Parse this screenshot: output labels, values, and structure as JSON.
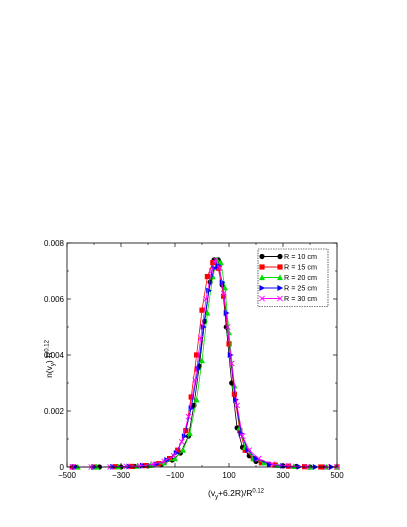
{
  "chart_data": {
    "type": "line",
    "xlabel": "(v_y+6.2R)/R^0.12",
    "ylabel": "n(v_y) R^0.12",
    "xlim": [
      -500,
      500
    ],
    "ylim": [
      0,
      0.008
    ],
    "xticks": [
      -500,
      -300,
      -100,
      100,
      300,
      500
    ],
    "yticks": [
      0,
      0.002,
      0.004,
      0.006,
      0.008
    ],
    "xtick_labels": [
      "−500",
      "−300",
      "−100",
      "100",
      "300",
      "500"
    ],
    "ytick_labels": [
      "0",
      "0.002",
      "0.004",
      "0.006",
      "0.008"
    ],
    "grid": false,
    "legend_position": "top-right",
    "series": [
      {
        "name": "R = 10 cm",
        "color": "#000000",
        "marker": "circle",
        "x": [
          -470,
          -380,
          -300,
          -250,
          -200,
          -150,
          -110,
          -80,
          -50,
          -30,
          -10,
          10,
          30,
          45,
          60,
          75,
          90,
          110,
          130,
          150,
          175,
          200,
          250,
          300,
          350,
          400,
          450,
          500
        ],
        "y": [
          0.0,
          0.0,
          0.0,
          2e-05,
          4e-05,
          0.0001,
          0.00025,
          0.0005,
          0.0011,
          0.0022,
          0.0036,
          0.0052,
          0.0066,
          0.0074,
          0.0074,
          0.0065,
          0.005,
          0.003,
          0.0014,
          0.0007,
          0.0004,
          0.0002,
          0.0001,
          4e-05,
          2e-05,
          0.0,
          0.0,
          0.0
        ]
      },
      {
        "name": "R = 15 cm",
        "color": "#ff0000",
        "marker": "square",
        "x": [
          -480,
          -400,
          -320,
          -260,
          -210,
          -160,
          -120,
          -90,
          -60,
          -40,
          -20,
          0,
          20,
          40,
          60,
          80,
          100,
          120,
          140,
          160,
          190,
          220,
          270,
          320,
          380,
          440,
          500
        ],
        "y": [
          0.0,
          0.0,
          1e-05,
          2e-05,
          5e-05,
          0.00012,
          0.0003,
          0.0006,
          0.0013,
          0.0025,
          0.004,
          0.0056,
          0.0068,
          0.0073,
          0.0071,
          0.0061,
          0.0044,
          0.0026,
          0.0013,
          0.0006,
          0.0003,
          0.00015,
          7e-05,
          3e-05,
          1e-05,
          0.0,
          0.0
        ]
      },
      {
        "name": "R = 20 cm",
        "color": "#00dd00",
        "marker": "triangle",
        "x": [
          -460,
          -390,
          -310,
          -240,
          -190,
          -140,
          -100,
          -70,
          -45,
          -20,
          0,
          20,
          40,
          55,
          70,
          85,
          100,
          120,
          140,
          160,
          190,
          230,
          280,
          340,
          400,
          460,
          500
        ],
        "y": [
          0.0,
          0.0,
          1e-05,
          3e-05,
          6e-05,
          0.00015,
          0.0003,
          0.0006,
          0.0012,
          0.0024,
          0.0038,
          0.0055,
          0.0068,
          0.0074,
          0.0073,
          0.0064,
          0.0048,
          0.0029,
          0.0014,
          0.0007,
          0.0003,
          0.00015,
          6e-05,
          2e-05,
          0.0,
          0.0,
          0.0
        ]
      },
      {
        "name": "R = 25 cm",
        "color": "#0000ff",
        "marker": "triangle-right",
        "x": [
          -470,
          -400,
          -330,
          -270,
          -220,
          -170,
          -130,
          -95,
          -65,
          -40,
          -15,
          5,
          25,
          45,
          60,
          75,
          90,
          105,
          125,
          145,
          170,
          200,
          250,
          300,
          360,
          420,
          480
        ],
        "y": [
          0.0,
          0.0,
          1e-05,
          2e-05,
          5e-05,
          0.0001,
          0.00025,
          0.0005,
          0.0011,
          0.0021,
          0.0035,
          0.005,
          0.0063,
          0.0071,
          0.0072,
          0.0066,
          0.0055,
          0.004,
          0.0024,
          0.0012,
          0.0006,
          0.0003,
          0.0001,
          4e-05,
          1e-05,
          0.0,
          0.0
        ]
      },
      {
        "name": "R = 30 cm",
        "color": "#ff00ff",
        "marker": "x",
        "x": [
          -480,
          -410,
          -340,
          -280,
          -230,
          -180,
          -140,
          -105,
          -75,
          -50,
          -25,
          -5,
          15,
          35,
          50,
          65,
          80,
          95,
          110,
          130,
          150,
          175,
          210,
          260,
          320,
          390,
          460,
          500
        ],
        "y": [
          0.0,
          0.0,
          0.0,
          2e-05,
          4e-05,
          0.0001,
          0.0002,
          0.0004,
          0.0009,
          0.0018,
          0.0031,
          0.0046,
          0.006,
          0.007,
          0.0074,
          0.0071,
          0.0062,
          0.005,
          0.0037,
          0.0022,
          0.0011,
          0.0006,
          0.0003,
          0.0001,
          4e-05,
          1e-05,
          0.0,
          0.0
        ]
      }
    ]
  }
}
